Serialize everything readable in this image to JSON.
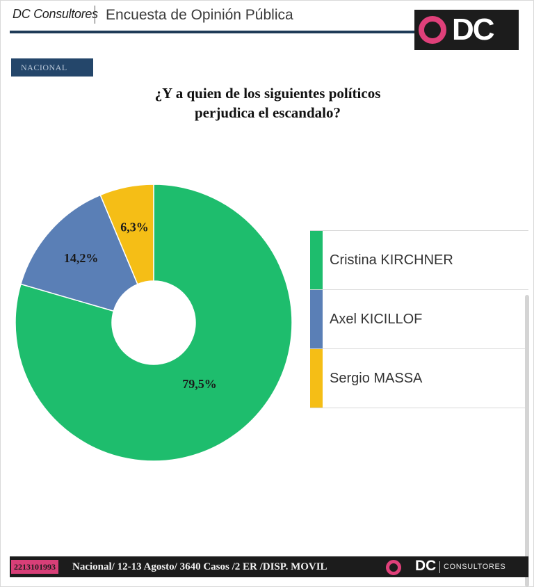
{
  "header": {
    "brand": "DC Consultores",
    "survey_title": "Encuesta de Opinión Pública",
    "logo_text": "DC",
    "logo_ring_color": "#e0407a"
  },
  "badge": "NACIONAL",
  "chart_data": {
    "type": "pie",
    "title": "¿Y a quien de los siguientes políticos perjudica el escandalo?",
    "title_lines": [
      "¿Y a quien de los siguientes políticos",
      "perjudica el escandalo?"
    ],
    "donut": true,
    "series": [
      {
        "name": "Cristina KIRCHNER",
        "value": 79.5,
        "label": "79,5%",
        "color": "#1ebd6d"
      },
      {
        "name": "Axel KICILLOF",
        "value": 14.2,
        "label": "14,2%",
        "color": "#5a7fb6"
      },
      {
        "name": "Sergio MASSA",
        "value": 6.3,
        "label": "6,3%",
        "color": "#f5be16"
      }
    ],
    "legend_position": "right"
  },
  "footer": {
    "phone": "2213101993",
    "info": "Nacional/ 12-13 Agosto/ 3640 Casos /2 ER /DISP. MOVIL",
    "dc": "DC",
    "consultores": "CONSULTORES"
  }
}
